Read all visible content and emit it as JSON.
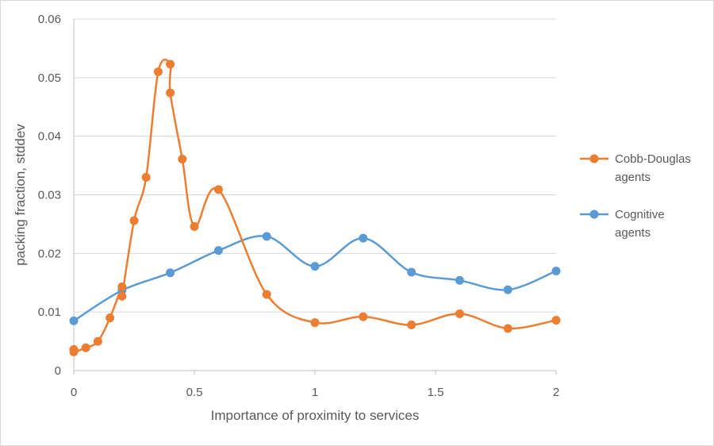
{
  "chart_data": {
    "type": "line",
    "title": "",
    "xlabel": "Importance of proximity to services",
    "ylabel": "packing fraction, stddev",
    "xlim": [
      0,
      2
    ],
    "ylim": [
      0,
      0.06
    ],
    "x_ticks": [
      "0",
      "0.5",
      "1",
      "1.5",
      "2"
    ],
    "y_ticks": [
      "0",
      "0.01",
      "0.02",
      "0.03",
      "0.04",
      "0.05",
      "0.06"
    ],
    "grid": "horizontal",
    "legend_position": "right",
    "smoothed": true,
    "series": [
      {
        "name": "Cobb-Douglas agents",
        "legend_lines": [
          "Cobb-Douglas",
          "agents"
        ],
        "color": "#ed7d31",
        "points": [
          [
            0,
            0.0036
          ],
          [
            0,
            0.0032
          ],
          [
            0.05,
            0.0039
          ],
          [
            0.1,
            0.005
          ],
          [
            0.15,
            0.009
          ],
          [
            0.2,
            0.0143
          ],
          [
            0.2,
            0.0127
          ],
          [
            0.25,
            0.0256
          ],
          [
            0.3,
            0.033
          ],
          [
            0.35,
            0.051
          ],
          [
            0.4,
            0.0523
          ],
          [
            0.4,
            0.0474
          ],
          [
            0.45,
            0.0361
          ],
          [
            0.5,
            0.0246
          ],
          [
            0.6,
            0.0309
          ],
          [
            0.8,
            0.013
          ],
          [
            1.0,
            0.0082
          ],
          [
            1.2,
            0.0092
          ],
          [
            1.4,
            0.0078
          ],
          [
            1.6,
            0.0097
          ],
          [
            1.8,
            0.0072
          ],
          [
            2.0,
            0.0086
          ]
        ]
      },
      {
        "name": "Cognitive agents",
        "legend_lines": [
          "Cognitive",
          "agents"
        ],
        "color": "#5b9bd5",
        "points": [
          [
            0,
            0.0085
          ],
          [
            0.2,
            0.0137
          ],
          [
            0.4,
            0.0167
          ],
          [
            0.6,
            0.0205
          ],
          [
            0.8,
            0.0229
          ],
          [
            1.0,
            0.0178
          ],
          [
            1.2,
            0.0226
          ],
          [
            1.4,
            0.0168
          ],
          [
            1.6,
            0.0154
          ],
          [
            1.8,
            0.0138
          ],
          [
            2.0,
            0.017
          ]
        ]
      }
    ]
  }
}
